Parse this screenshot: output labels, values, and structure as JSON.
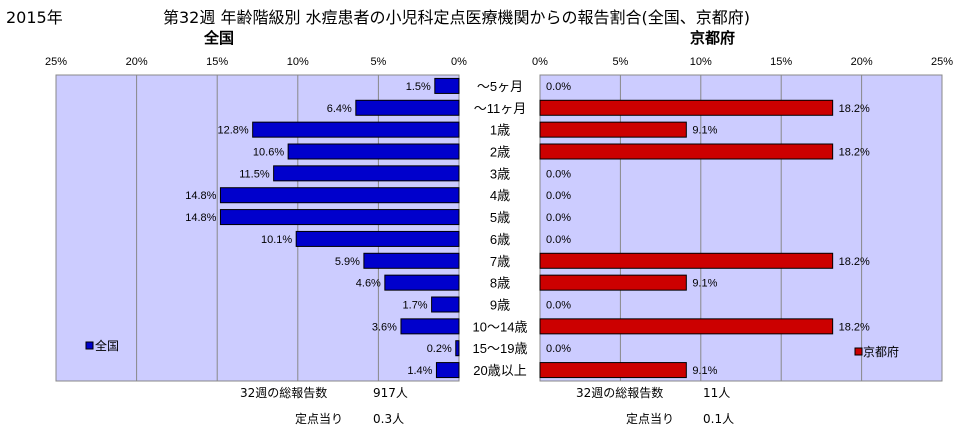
{
  "header": {
    "year": "2015年",
    "title": "第32週 年齢階級別 水痘患者の小児科定点医療機関からの報告割合(全国、京都府)"
  },
  "colors": {
    "plot_bg": "#ccccff",
    "national_bar": "#0000cc",
    "kyoto_bar": "#cc0000",
    "frame": "#888888"
  },
  "footer": {
    "national_total_label": "32週の総報告数",
    "national_total_value": "917人",
    "national_per_label": "定点当り",
    "national_per_value": "0.3人",
    "kyoto_total_label": "32週の総報告数",
    "kyoto_total_value": "11人",
    "kyoto_per_label": "定点当り",
    "kyoto_per_value": "0.1人"
  },
  "chart_data": [
    {
      "type": "bar",
      "orientation": "horizontal-reversed",
      "title": "全国",
      "categories": [
        "～5ヶ月",
        "～11ヶ月",
        "1歳",
        "2歳",
        "3歳",
        "4歳",
        "5歳",
        "6歳",
        "7歳",
        "8歳",
        "9歳",
        "10～14歳",
        "15～19歳",
        "20歳以上"
      ],
      "series": [
        {
          "name": "全国",
          "values": [
            1.5,
            6.4,
            12.8,
            10.6,
            11.5,
            14.8,
            14.8,
            10.1,
            5.9,
            4.6,
            1.7,
            3.6,
            0.2,
            1.4
          ]
        }
      ],
      "data_labels": [
        "1.5%",
        "6.4%",
        "12.8%",
        "10.6%",
        "11.5%",
        "14.8%",
        "14.8%",
        "10.1%",
        "5.9%",
        "4.6%",
        "1.7%",
        "3.6%",
        "0.2%",
        "1.4%"
      ],
      "xlim": [
        0,
        25
      ],
      "xticks": [
        "25%",
        "20%",
        "15%",
        "10%",
        "5%",
        "0%"
      ],
      "grid": true,
      "legend": "bottom-left"
    },
    {
      "type": "bar",
      "orientation": "horizontal",
      "title": "京都府",
      "categories": [
        "～5ヶ月",
        "～11ヶ月",
        "1歳",
        "2歳",
        "3歳",
        "4歳",
        "5歳",
        "6歳",
        "7歳",
        "8歳",
        "9歳",
        "10～14歳",
        "15～19歳",
        "20歳以上"
      ],
      "series": [
        {
          "name": "京都府",
          "values": [
            0.0,
            18.2,
            9.1,
            18.2,
            0.0,
            0.0,
            0.0,
            0.0,
            18.2,
            9.1,
            0.0,
            18.2,
            0.0,
            9.1
          ]
        }
      ],
      "data_labels": [
        "0.0%",
        "18.2%",
        "9.1%",
        "18.2%",
        "0.0%",
        "0.0%",
        "0.0%",
        "0.0%",
        "18.2%",
        "9.1%",
        "0.0%",
        "18.2%",
        "0.0%",
        "9.1%"
      ],
      "xlim": [
        0,
        25
      ],
      "xticks": [
        "0%",
        "5%",
        "10%",
        "15%",
        "20%",
        "25%"
      ],
      "grid": true,
      "legend": "bottom-right"
    }
  ]
}
